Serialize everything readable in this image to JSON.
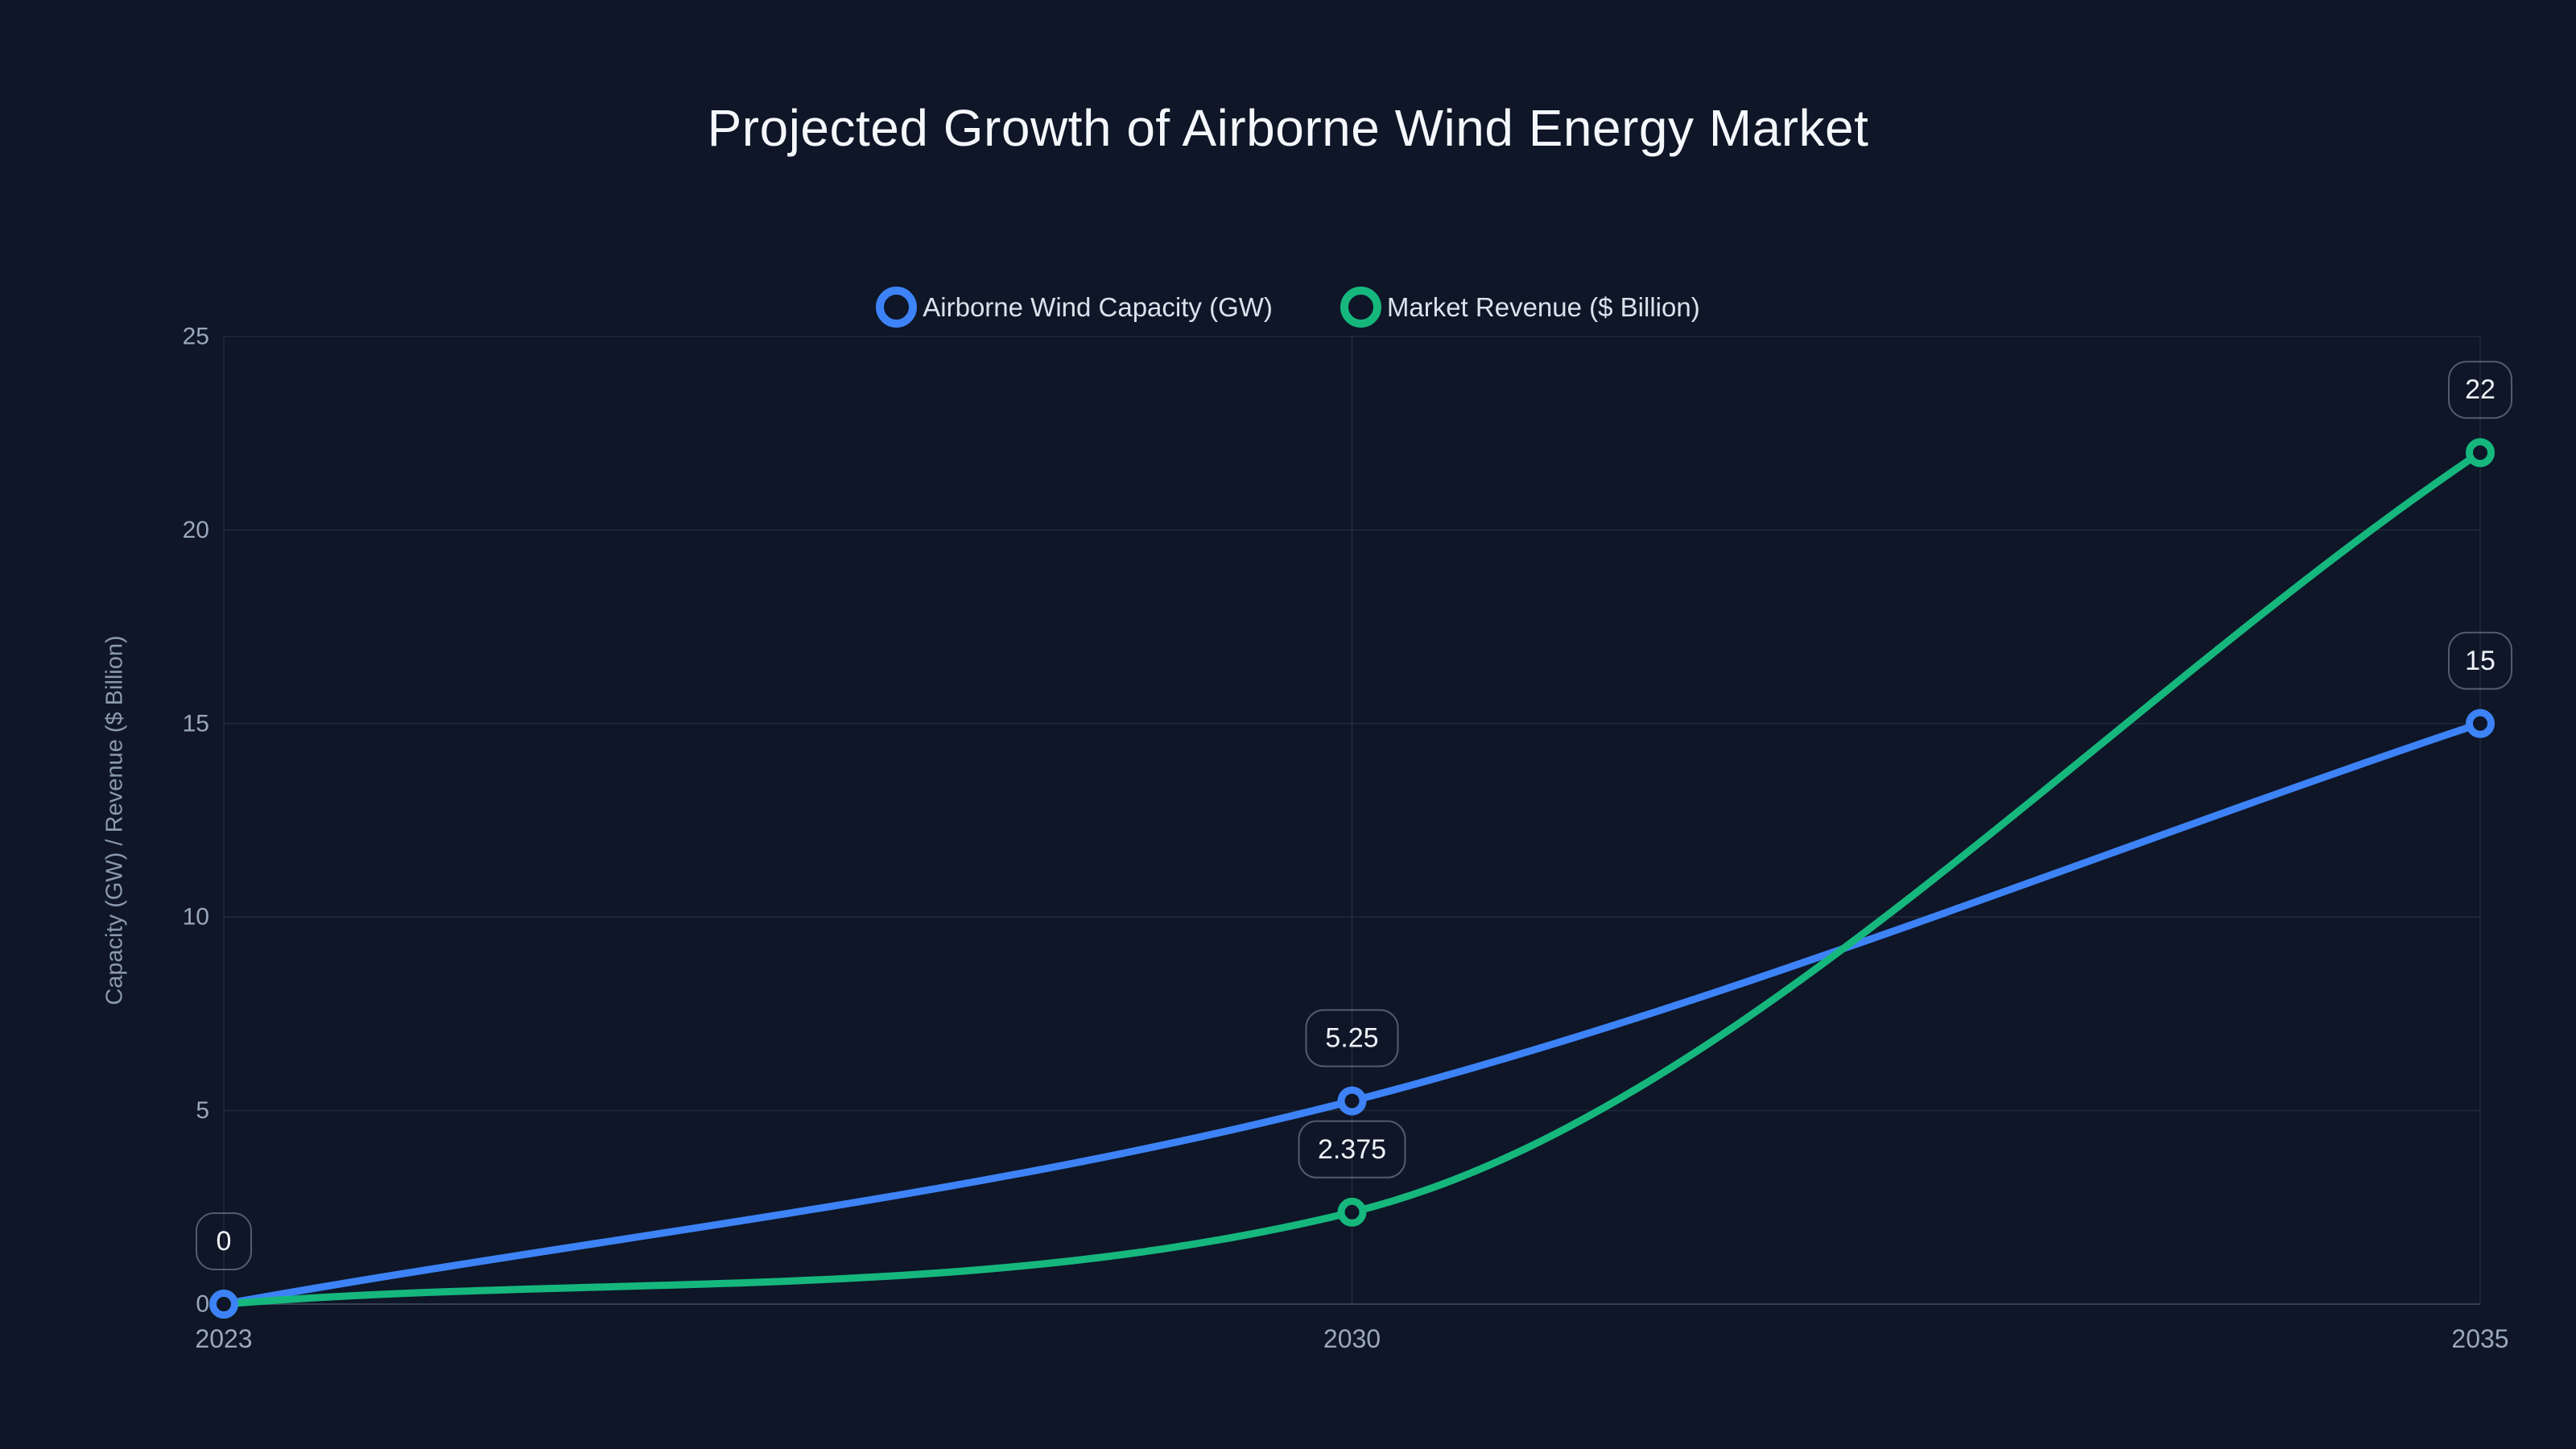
{
  "chart_data": {
    "type": "line",
    "title": "Projected Growth of Airborne Wind Energy Market",
    "categories": [
      "2023",
      "2030",
      "2035"
    ],
    "series": [
      {
        "name": "Airborne Wind Capacity (GW)",
        "color": "#3d83f7",
        "values": [
          0,
          5.25,
          15
        ]
      },
      {
        "name": "Market Revenue ($ Billion)",
        "color": "#16b77d",
        "values": [
          0,
          2.375,
          22
        ]
      }
    ],
    "xlabel": "",
    "ylabel": "Capacity (GW) / Revenue ($ Billion)",
    "ylim": [
      0,
      25
    ],
    "yticks": [
      0,
      5,
      10,
      15,
      20,
      25
    ],
    "grid": true,
    "legend_position": "top",
    "curve": "monotone",
    "point_labels": [
      {
        "text": "0",
        "series": 0,
        "point": 0
      },
      {
        "text": "5.25",
        "series": 0,
        "point": 1
      },
      {
        "text": "2.375",
        "series": 1,
        "point": 1
      },
      {
        "text": "15",
        "series": 0,
        "point": 2
      },
      {
        "text": "22",
        "series": 1,
        "point": 2
      }
    ],
    "colors": {
      "background": "#0e1627",
      "title_text": "#f4f7fb",
      "legend_text": "#dbe2ec",
      "tick_text": "#9aa7bc",
      "axis_title_text": "#8b99ae",
      "grid_line": "rgba(148,163,184,0.14)",
      "axis_line": "rgba(148,163,184,0.30)",
      "label_box_border": "rgba(148,163,184,0.50)",
      "label_text": "#eef2f8"
    }
  }
}
